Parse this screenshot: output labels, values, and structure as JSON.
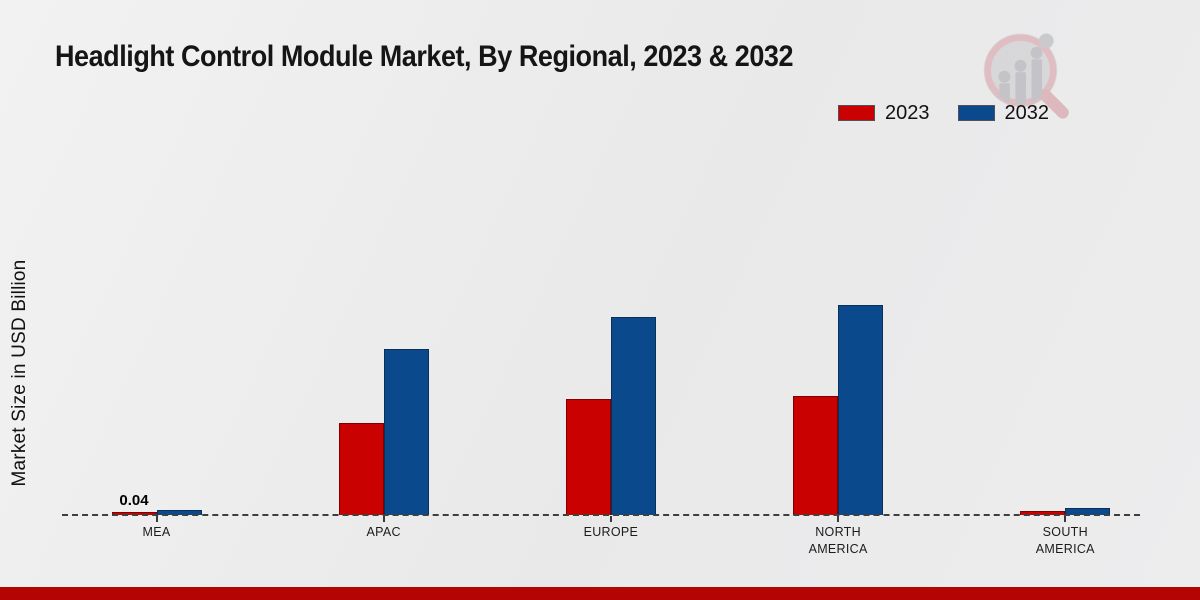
{
  "page": {
    "background_color": "#ebebec",
    "footer_bar_color": "#b50404"
  },
  "chart_data": {
    "type": "bar",
    "title": "Headlight Control Module Market, By Regional, 2023 & 2032",
    "ylabel": "Market Size in USD Billion",
    "xlabel": "",
    "categories": [
      "MEA",
      "APAC",
      "EUROPE",
      "NORTH\nAMERICA",
      "SOUTH\nAMERICA"
    ],
    "series": [
      {
        "name": "2023",
        "color": "#c90101",
        "border_color": "#7e0000",
        "values": [
          0.04,
          1.22,
          1.55,
          1.58,
          0.05
        ]
      },
      {
        "name": "2032",
        "color": "#0a4a8c",
        "border_color": "#093058",
        "values": [
          0.07,
          2.21,
          2.63,
          2.79,
          0.09
        ]
      }
    ],
    "data_labels": [
      {
        "series": "2023",
        "category": "MEA",
        "text": "0.04"
      }
    ],
    "ylim": [
      0,
      3.5
    ],
    "grid": false,
    "legend_position": "top-right",
    "legend_entries": [
      "2023",
      "2032"
    ],
    "baseline_style": "dashed"
  },
  "icons": {
    "watermark": "bar-chart-magnifier-logo"
  }
}
